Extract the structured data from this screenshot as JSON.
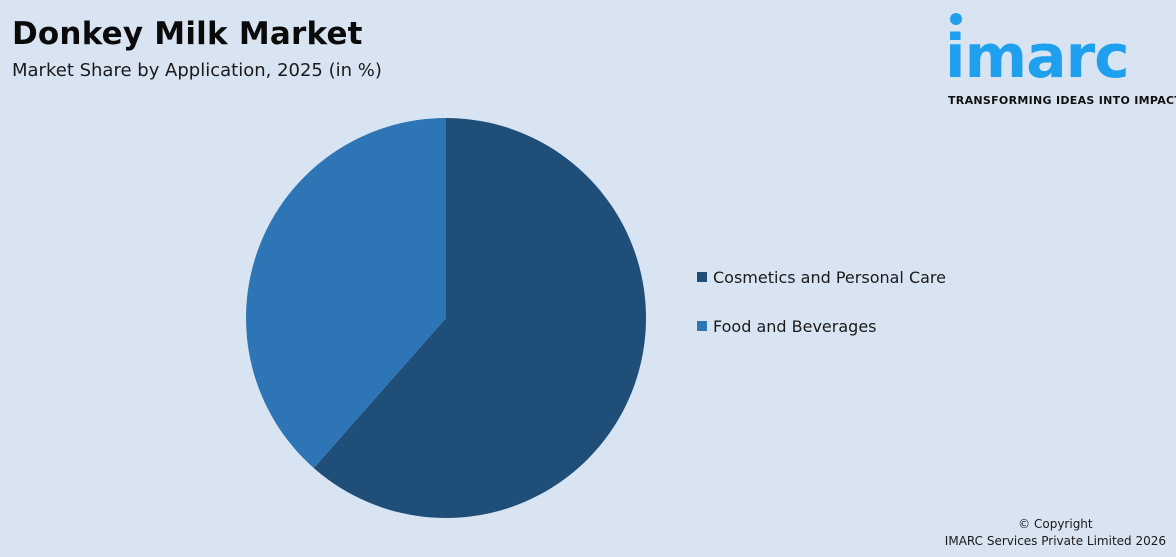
{
  "header": {
    "title": "Donkey Milk Market",
    "subtitle": "Market Share by Application, 2025 (in %)"
  },
  "logo": {
    "wordmark": "imarc",
    "tagline": "TRANSFORMING IDEAS INTO IMPACT",
    "color": "#1ea0ee"
  },
  "legend": [
    {
      "label": "Cosmetics and Personal Care",
      "color": "#1f4e79"
    },
    {
      "label": "Food and Beverages",
      "color": "#2e75b6"
    }
  ],
  "footer": {
    "line1": "© Copyright",
    "line2": "IMARC Services Private Limited 2026"
  },
  "chart_data": {
    "type": "pie",
    "title": "Donkey Milk Market",
    "subtitle": "Market Share by Application, 2025 (in %)",
    "categories": [
      "Cosmetics and Personal Care",
      "Food and Beverages"
    ],
    "values": [
      61.5,
      38.5
    ],
    "colors": [
      "#1f4e79",
      "#2e75b6"
    ],
    "legend_position": "right",
    "data_labels": false
  }
}
